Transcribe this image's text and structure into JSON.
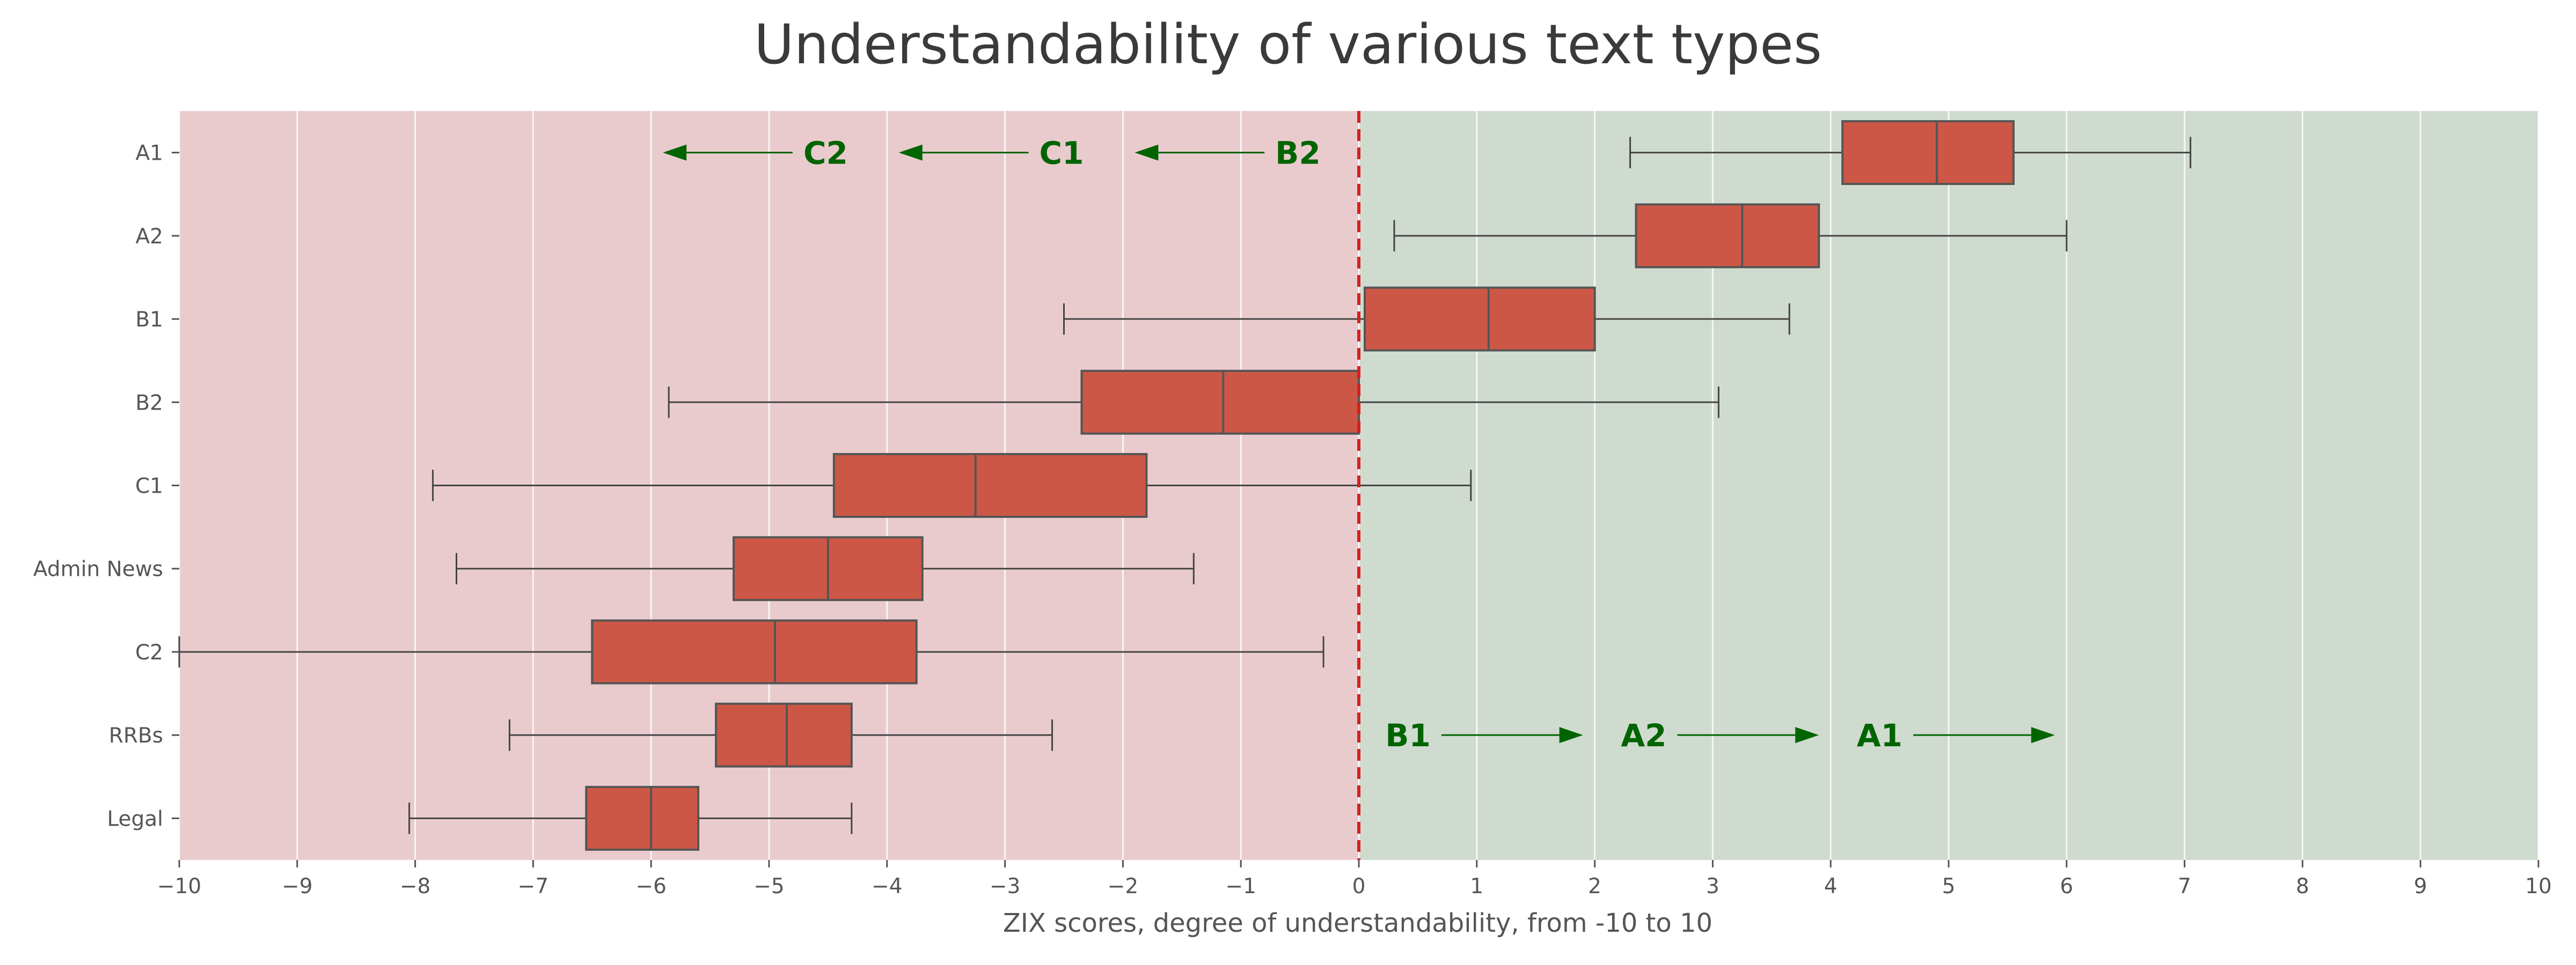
{
  "chart_data": {
    "type": "boxplot",
    "orientation": "horizontal",
    "title": "Understandability of various text types",
    "xlabel": "ZIX scores, degree of understandability, from -10 to 10",
    "ylabel": "",
    "xlim": [
      -10,
      10
    ],
    "xticks": [
      -10,
      -9,
      -8,
      -7,
      -6,
      -5,
      -4,
      -3,
      -2,
      -1,
      0,
      1,
      2,
      3,
      4,
      5,
      6,
      7,
      8,
      9,
      10
    ],
    "grid": true,
    "reference_line": {
      "x": 0,
      "style": "dashed",
      "color": "#d62020"
    },
    "regions": [
      {
        "from": -10,
        "to": 0,
        "color": "#e9cbce"
      },
      {
        "from": 0,
        "to": 10,
        "color": "#d0dbd0"
      }
    ],
    "box_color": "#cd5746",
    "categories": [
      "A1",
      "A2",
      "B1",
      "B2",
      "C1",
      "Admin News",
      "C2",
      "RRBs",
      "Legal"
    ],
    "boxes": [
      {
        "label": "A1",
        "whislo": 2.3,
        "q1": 4.1,
        "med": 4.9,
        "q3": 5.55,
        "whishi": 7.05
      },
      {
        "label": "A2",
        "whislo": 0.3,
        "q1": 2.35,
        "med": 3.25,
        "q3": 3.9,
        "whishi": 6.0
      },
      {
        "label": "B1",
        "whislo": -2.5,
        "q1": 0.05,
        "med": 1.1,
        "q3": 2.0,
        "whishi": 3.65
      },
      {
        "label": "B2",
        "whislo": -5.85,
        "q1": -2.35,
        "med": -1.15,
        "q3": 0.0,
        "whishi": 3.05
      },
      {
        "label": "C1",
        "whislo": -7.85,
        "q1": -4.45,
        "med": -3.25,
        "q3": -1.8,
        "whishi": 0.95
      },
      {
        "label": "Admin News",
        "whislo": -7.65,
        "q1": -5.3,
        "med": -4.5,
        "q3": -3.7,
        "whishi": -1.4
      },
      {
        "label": "C2",
        "whislo": -10.0,
        "q1": -6.5,
        "med": -4.95,
        "q3": -3.75,
        "whishi": -0.3
      },
      {
        "label": "RRBs",
        "whislo": -7.2,
        "q1": -5.45,
        "med": -4.85,
        "q3": -4.3,
        "whishi": -2.6
      },
      {
        "label": "Legal",
        "whislo": -8.05,
        "q1": -6.55,
        "med": -6.0,
        "q3": -5.6,
        "whishi": -4.3
      }
    ],
    "annotations": [
      {
        "text": "C2",
        "arrow_from": -4.8,
        "arrow_to": -5.9,
        "row": 0.5,
        "direction": "left"
      },
      {
        "text": "C1",
        "arrow_from": -2.8,
        "arrow_to": -3.9,
        "row": 0.5,
        "direction": "left"
      },
      {
        "text": "B2",
        "arrow_from": -0.8,
        "arrow_to": -1.9,
        "row": 0.5,
        "direction": "left"
      },
      {
        "text": "B1",
        "arrow_from": 0.7,
        "arrow_to": 1.9,
        "row": 7.5,
        "direction": "right"
      },
      {
        "text": "A2",
        "arrow_from": 2.7,
        "arrow_to": 3.9,
        "row": 7.5,
        "direction": "right"
      },
      {
        "text": "A1",
        "arrow_from": 4.7,
        "arrow_to": 5.9,
        "row": 7.5,
        "direction": "right"
      }
    ],
    "annotation_color": "#006400"
  }
}
